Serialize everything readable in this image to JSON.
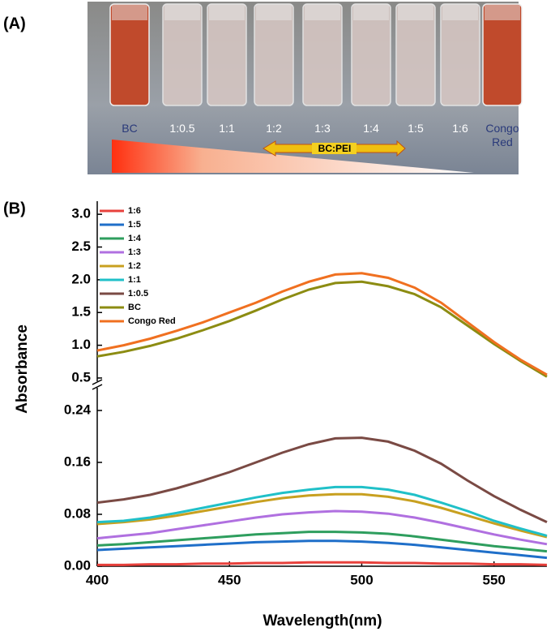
{
  "panel_a": {
    "label": "(A)",
    "vial_labels": [
      "BC",
      "1:0.5",
      "1:1",
      "1:2",
      "1:3",
      "1:4",
      "1:5",
      "1:6",
      "Congo Red"
    ],
    "arrow_label": "BC:PEI"
  },
  "panel_b_label": "(B)",
  "chart_data": [
    {
      "type": "line",
      "x": [
        400,
        410,
        420,
        430,
        440,
        450,
        460,
        470,
        480,
        490,
        500,
        510,
        520,
        530,
        540,
        550,
        560,
        570
      ],
      "xlim": [
        400,
        570
      ],
      "ylim": [
        0.45,
        3.2
      ],
      "yticks": [
        0.5,
        {
          "value": 1.0,
          "label": "1.0"
        },
        1.5,
        {
          "value": 2.0,
          "label": "2.0"
        },
        2.5,
        {
          "value": 3.0,
          "label": "3.0"
        }
      ],
      "series": [
        {
          "name": "BC",
          "color": "#8c8c12",
          "values": [
            0.83,
            0.9,
            0.99,
            1.1,
            1.23,
            1.37,
            1.53,
            1.7,
            1.85,
            1.95,
            1.97,
            1.9,
            1.78,
            1.58,
            1.3,
            1.02,
            0.76,
            0.52
          ]
        },
        {
          "name": "Congo Red",
          "color": "#f07020",
          "values": [
            0.92,
            1.0,
            1.1,
            1.22,
            1.35,
            1.5,
            1.65,
            1.82,
            1.97,
            2.08,
            2.1,
            2.03,
            1.88,
            1.65,
            1.35,
            1.05,
            0.78,
            0.55
          ]
        }
      ]
    },
    {
      "type": "line",
      "x": [
        400,
        410,
        420,
        430,
        440,
        450,
        460,
        470,
        480,
        490,
        500,
        510,
        520,
        530,
        540,
        550,
        560,
        570
      ],
      "xlim": [
        400,
        570
      ],
      "xticks": [
        400,
        450,
        500,
        550
      ],
      "x_label": "Wavelength(nm)",
      "y_label": "Absorbance",
      "ylim": [
        0,
        0.275
      ],
      "yticks": [
        {
          "value": 0,
          "label": "0.00"
        },
        {
          "value": 0.08,
          "label": "0.08"
        },
        0.16,
        0.24
      ],
      "series": [
        {
          "name": "1:6",
          "color": "#e8413c",
          "values": [
            0.002,
            0.002,
            0.003,
            0.003,
            0.004,
            0.004,
            0.005,
            0.005,
            0.006,
            0.006,
            0.006,
            0.005,
            0.005,
            0.004,
            0.004,
            0.003,
            0.003,
            0.002
          ]
        },
        {
          "name": "1:5",
          "color": "#1f6fc9",
          "values": [
            0.025,
            0.027,
            0.029,
            0.031,
            0.033,
            0.035,
            0.037,
            0.038,
            0.039,
            0.039,
            0.038,
            0.036,
            0.033,
            0.029,
            0.025,
            0.021,
            0.017,
            0.013
          ]
        },
        {
          "name": "1:4",
          "color": "#2e9e5e",
          "values": [
            0.032,
            0.034,
            0.037,
            0.04,
            0.043,
            0.046,
            0.049,
            0.051,
            0.053,
            0.053,
            0.052,
            0.05,
            0.046,
            0.041,
            0.036,
            0.031,
            0.027,
            0.023
          ]
        },
        {
          "name": "1:3",
          "color": "#b070e0",
          "values": [
            0.043,
            0.047,
            0.051,
            0.057,
            0.063,
            0.069,
            0.075,
            0.08,
            0.083,
            0.085,
            0.084,
            0.081,
            0.075,
            0.067,
            0.058,
            0.049,
            0.041,
            0.034
          ]
        },
        {
          "name": "1:2",
          "color": "#c8a020",
          "values": [
            0.065,
            0.068,
            0.072,
            0.078,
            0.085,
            0.092,
            0.099,
            0.105,
            0.109,
            0.111,
            0.111,
            0.107,
            0.1,
            0.09,
            0.078,
            0.066,
            0.055,
            0.045
          ]
        },
        {
          "name": "1:1",
          "color": "#20c0c8",
          "values": [
            0.068,
            0.07,
            0.075,
            0.082,
            0.09,
            0.098,
            0.106,
            0.113,
            0.118,
            0.122,
            0.122,
            0.118,
            0.11,
            0.098,
            0.085,
            0.07,
            0.058,
            0.047
          ]
        },
        {
          "name": "1:0.5",
          "color": "#7a4a44",
          "values": [
            0.098,
            0.103,
            0.11,
            0.12,
            0.132,
            0.145,
            0.16,
            0.175,
            0.188,
            0.197,
            0.198,
            0.192,
            0.178,
            0.158,
            0.132,
            0.108,
            0.087,
            0.068
          ]
        }
      ]
    }
  ]
}
